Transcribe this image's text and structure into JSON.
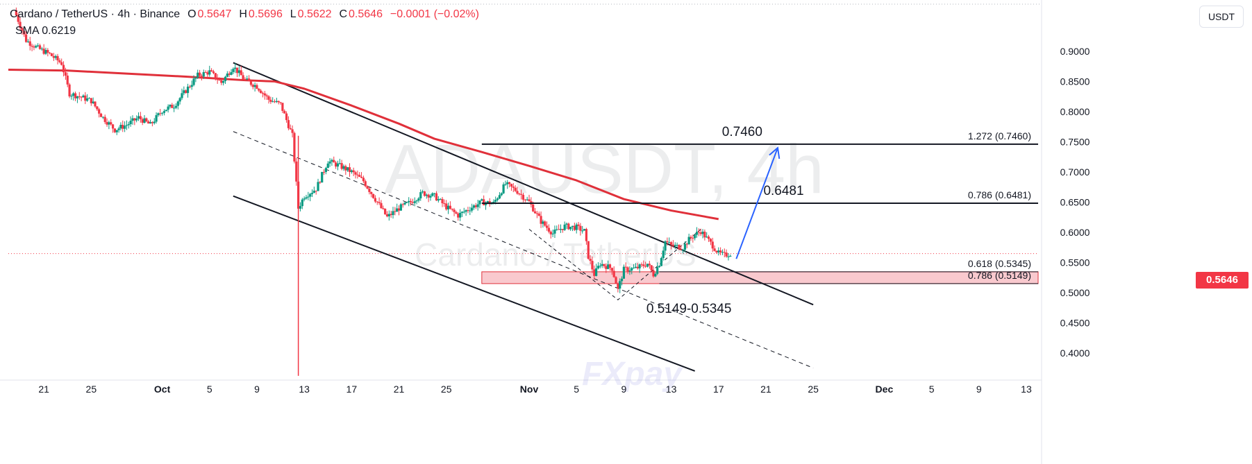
{
  "header": {
    "symbol": "Cardano / TetherUS · 4h · Binance",
    "open_label": "O",
    "open": "0.5647",
    "high_label": "H",
    "high": "0.5696",
    "low_label": "L",
    "low": "0.5622",
    "close_label": "C",
    "close": "0.5646",
    "change": "−0.0001 (−0.02%)",
    "sma_label": "SMA",
    "sma_value": "0.6219"
  },
  "currency_button": "USDT",
  "last_price_label": "0.5646",
  "watermark": {
    "title": "ADAUSDT, 4h",
    "subtitle": "Cardano / TetherUS",
    "brand": "FXpay"
  },
  "colors": {
    "up": "#089981",
    "down": "#f23645",
    "sma": "#e0303a",
    "arrow": "#2962ff",
    "zone_fill": "#f7b7bd",
    "zone_border": "#e0303a",
    "axis_text": "#131722",
    "last_price": "#f23645"
  },
  "chart_data": {
    "type": "candlestick",
    "y_axis": {
      "ticks": [
        "0.9000",
        "0.8500",
        "0.8000",
        "0.7500",
        "0.7000",
        "0.6500",
        "0.6000",
        "0.5500",
        "0.5000",
        "0.4500",
        "0.4000"
      ],
      "range": [
        0.355,
        0.985
      ]
    },
    "x_axis": {
      "tick_labels": [
        "21",
        "25",
        "Oct",
        "5",
        "9",
        "13",
        "17",
        "21",
        "25",
        "Nov",
        "5",
        "9",
        "13",
        "17",
        "21",
        "25",
        "Dec",
        "5",
        "9",
        "13"
      ],
      "tick_dates": [
        "2024-09-21",
        "2024-09-25",
        "2024-10-01",
        "2024-10-05",
        "2024-10-09",
        "2024-10-13",
        "2024-10-17",
        "2024-10-21",
        "2024-10-25",
        "2024-11-01",
        "2024-11-05",
        "2024-11-09",
        "2024-11-13",
        "2024-11-17",
        "2024-11-21",
        "2024-11-25",
        "2024-12-01",
        "2024-12-05",
        "2024-12-09",
        "2024-12-13"
      ],
      "range": [
        "2024-09-18T00:00",
        "2024-12-14T00:00"
      ]
    },
    "price_path": [
      [
        "2024-09-18T12:00",
        0.968
      ],
      [
        "2024-09-19T12:00",
        0.918
      ],
      [
        "2024-09-20T12:00",
        0.905
      ],
      [
        "2024-09-21T12:00",
        0.895
      ],
      [
        "2024-09-22T12:00",
        0.88
      ],
      [
        "2024-09-23T04:00",
        0.83
      ],
      [
        "2024-09-24T00:00",
        0.825
      ],
      [
        "2024-09-25T00:00",
        0.818
      ],
      [
        "2024-09-26T00:00",
        0.79
      ],
      [
        "2024-09-27T00:00",
        0.77
      ],
      [
        "2024-09-28T00:00",
        0.778
      ],
      [
        "2024-09-29T00:00",
        0.79
      ],
      [
        "2024-09-30T00:00",
        0.778
      ],
      [
        "2024-10-01T00:00",
        0.802
      ],
      [
        "2024-10-02T00:00",
        0.81
      ],
      [
        "2024-10-03T00:00",
        0.835
      ],
      [
        "2024-10-04T00:00",
        0.86
      ],
      [
        "2024-10-05T00:00",
        0.866
      ],
      [
        "2024-10-06T00:00",
        0.848
      ],
      [
        "2024-10-07T00:00",
        0.875
      ],
      [
        "2024-10-08T00:00",
        0.852
      ],
      [
        "2024-10-09T00:00",
        0.842
      ],
      [
        "2024-10-10T00:00",
        0.82
      ],
      [
        "2024-10-11T00:00",
        0.812
      ],
      [
        "2024-10-12T00:00",
        0.76
      ],
      [
        "2024-10-12T12:00",
        0.64
      ],
      [
        "2024-10-13T00:00",
        0.66
      ],
      [
        "2024-10-14T00:00",
        0.672
      ],
      [
        "2024-10-15T00:00",
        0.718
      ],
      [
        "2024-10-16T00:00",
        0.71
      ],
      [
        "2024-10-17T00:00",
        0.7
      ],
      [
        "2024-10-18T00:00",
        0.685
      ],
      [
        "2024-10-19T00:00",
        0.655
      ],
      [
        "2024-10-20T00:00",
        0.625
      ],
      [
        "2024-10-21T00:00",
        0.64
      ],
      [
        "2024-10-22T00:00",
        0.65
      ],
      [
        "2024-10-23T00:00",
        0.665
      ],
      [
        "2024-10-24T00:00",
        0.66
      ],
      [
        "2024-10-25T00:00",
        0.642
      ],
      [
        "2024-10-26T00:00",
        0.628
      ],
      [
        "2024-10-27T00:00",
        0.64
      ],
      [
        "2024-10-28T00:00",
        0.65
      ],
      [
        "2024-10-29T00:00",
        0.648
      ],
      [
        "2024-10-30T00:00",
        0.68
      ],
      [
        "2024-10-31T00:00",
        0.668
      ],
      [
        "2024-11-01T00:00",
        0.65
      ],
      [
        "2024-11-02T00:00",
        0.618
      ],
      [
        "2024-11-03T00:00",
        0.598
      ],
      [
        "2024-11-04T00:00",
        0.61
      ],
      [
        "2024-11-05T00:00",
        0.608
      ],
      [
        "2024-11-05T16:00",
        0.602
      ],
      [
        "2024-11-06T00:00",
        0.56
      ],
      [
        "2024-11-06T12:00",
        0.53
      ],
      [
        "2024-11-07T00:00",
        0.548
      ],
      [
        "2024-11-08T00:00",
        0.54
      ],
      [
        "2024-11-08T12:00",
        0.505
      ],
      [
        "2024-11-09T00:00",
        0.538
      ],
      [
        "2024-11-10T00:00",
        0.54
      ],
      [
        "2024-11-11T00:00",
        0.548
      ],
      [
        "2024-11-11T12:00",
        0.53
      ],
      [
        "2024-11-12T00:00",
        0.548
      ],
      [
        "2024-11-12T12:00",
        0.585
      ],
      [
        "2024-11-13T00:00",
        0.578
      ],
      [
        "2024-11-14T00:00",
        0.575
      ],
      [
        "2024-11-14T12:00",
        0.588
      ],
      [
        "2024-11-15T00:00",
        0.596
      ],
      [
        "2024-11-15T12:00",
        0.602
      ],
      [
        "2024-11-16T00:00",
        0.59
      ],
      [
        "2024-11-16T12:00",
        0.578
      ],
      [
        "2024-11-17T00:00",
        0.565
      ],
      [
        "2024-11-17T12:00",
        0.562
      ],
      [
        "2024-11-18T00:00",
        0.5646
      ]
    ],
    "sma": {
      "label": "SMA",
      "value": 0.6219,
      "points": [
        [
          "2024-09-18T00:00",
          0.8695
        ],
        [
          "2024-09-23T00:00",
          0.868
        ],
        [
          "2024-09-28T00:00",
          0.863
        ],
        [
          "2024-10-03T00:00",
          0.858
        ],
        [
          "2024-10-08T00:00",
          0.852
        ],
        [
          "2024-10-10T12:00",
          0.85
        ],
        [
          "2024-10-13T00:00",
          0.838
        ],
        [
          "2024-10-17T00:00",
          0.81
        ],
        [
          "2024-10-21T00:00",
          0.78
        ],
        [
          "2024-10-24T00:00",
          0.755
        ],
        [
          "2024-10-28T00:00",
          0.733
        ],
        [
          "2024-11-01T00:00",
          0.71
        ],
        [
          "2024-11-05T00:00",
          0.686
        ],
        [
          "2024-11-09T00:00",
          0.655
        ],
        [
          "2024-11-13T00:00",
          0.636
        ],
        [
          "2024-11-17T00:00",
          0.6219
        ]
      ]
    },
    "levels": [
      {
        "price": 0.746,
        "label": "1.272 (0.7460)",
        "annotation": "0.7460",
        "from": "2024-10-28T00:00"
      },
      {
        "price": 0.6481,
        "label": "0.786 (0.6481)",
        "annotation": "0.6481",
        "from": "2024-10-28T00:00"
      },
      {
        "price": 0.5345,
        "label": "0.618 (0.5345)",
        "from": "2024-11-12T00:00"
      },
      {
        "price": 0.5149,
        "label": "0.786 (0.5149)",
        "from": "2024-11-12T00:00"
      }
    ],
    "zone": {
      "from": "2024-10-28T00:00",
      "low": 0.5149,
      "high": 0.5345,
      "label": "0.5149-0.5345"
    },
    "channel_upper": [
      [
        "2024-10-07T00:00",
        0.881
      ],
      [
        "2024-11-25T00:00",
        0.48
      ]
    ],
    "channel_lower": [
      [
        "2024-10-07T00:00",
        0.66
      ],
      [
        "2024-11-15T00:00",
        0.37
      ]
    ],
    "channel_mid": [
      [
        "2024-10-07T00:00",
        0.767
      ],
      [
        "2024-11-25T00:00",
        0.375
      ]
    ],
    "zigzag": [
      [
        "2024-11-01T00:00",
        0.605
      ],
      [
        "2024-11-08T12:00",
        0.488
      ],
      [
        "2024-11-15T12:00",
        0.605
      ]
    ],
    "projection_arrow": [
      [
        "2024-11-18T12:00",
        0.556
      ],
      [
        "2024-11-22T00:00",
        0.74
      ]
    ],
    "wick_marker": {
      "date": "2024-10-12T12:00",
      "low": 0.362
    }
  }
}
